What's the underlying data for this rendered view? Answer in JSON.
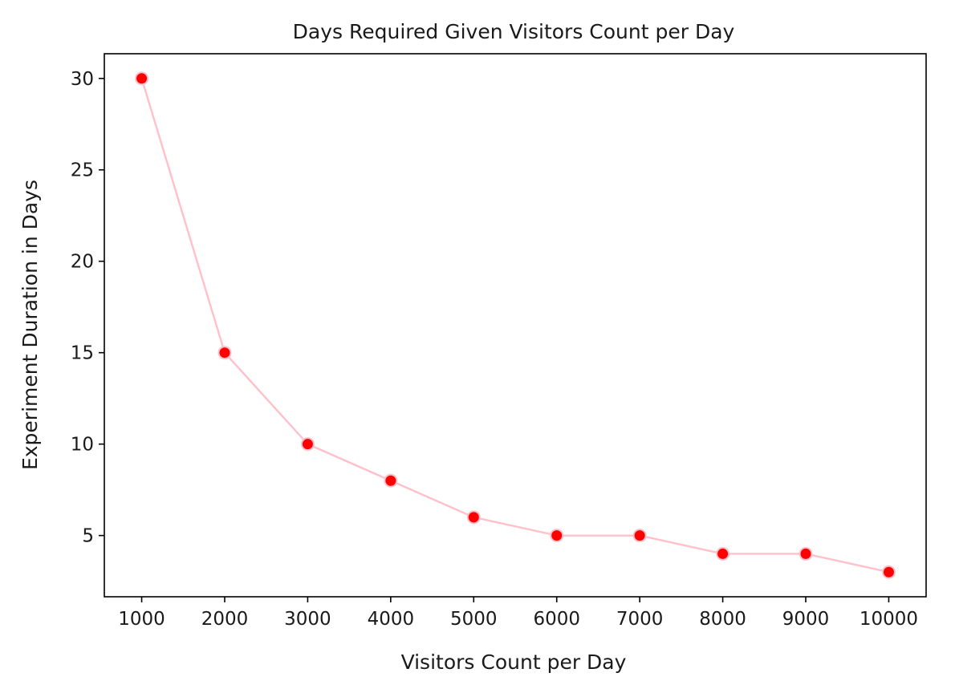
{
  "chart_data": {
    "type": "line",
    "title": "Days Required Given Visitors Count per Day",
    "xlabel": "Visitors Count per Day",
    "ylabel": "Experiment Duration in Days",
    "x": [
      1000,
      2000,
      3000,
      4000,
      5000,
      6000,
      7000,
      8000,
      9000,
      10000
    ],
    "series": [
      {
        "values": [
          30,
          15,
          10,
          8,
          6,
          5,
          5,
          4,
          4,
          3
        ],
        "line_color": "#ffc0cb",
        "marker_color": "#ff0000",
        "marker": "circle"
      }
    ],
    "xticks": [
      1000,
      2000,
      3000,
      4000,
      5000,
      6000,
      7000,
      8000,
      9000,
      10000
    ],
    "yticks": [
      5,
      10,
      15,
      20,
      25,
      30
    ],
    "xlim": [
      550,
      10450
    ],
    "ylim": [
      1.65,
      31.35
    ],
    "grid": false,
    "legend": "none"
  }
}
